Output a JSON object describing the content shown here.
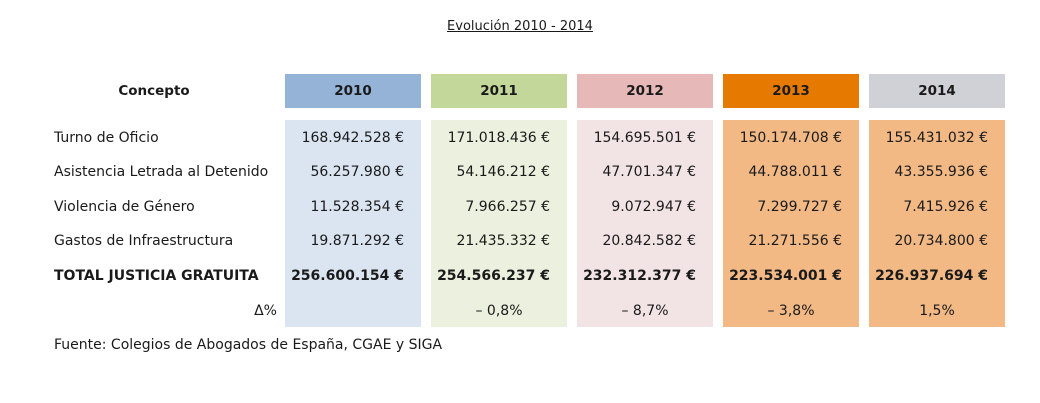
{
  "title": "Evolución 2010 - 2014",
  "concept_header": "Concepto",
  "years": [
    {
      "label": "2010",
      "header_color": "#95b3d7",
      "body_color": "#dbe5f1"
    },
    {
      "label": "2011",
      "header_color": "#c4d79b",
      "body_color": "#ebf1de"
    },
    {
      "label": "2012",
      "header_color": "#e6b8b7",
      "body_color": "#f2e4e4"
    },
    {
      "label": "2013",
      "header_color": "#e67a00",
      "body_color": "#f2b985"
    },
    {
      "label": "2014",
      "header_color": "#d0d1d6",
      "body_color": "#f2b985"
    }
  ],
  "rows": [
    {
      "label": "Turno de Oficio",
      "values": [
        "168.942.528 €",
        "171.018.436 €",
        "154.695.501 €",
        "150.174.708 €",
        "155.431.032 €"
      ]
    },
    {
      "label": "Asistencia Letrada al Detenido",
      "values": [
        "56.257.980 €",
        "54.146.212 €",
        "47.701.347 €",
        "44.788.011 €",
        "43.355.936 €"
      ]
    },
    {
      "label": "Violencia de Género",
      "values": [
        "11.528.354 €",
        "7.966.257 €",
        "9.072.947 €",
        "7.299.727 €",
        "7.415.926 €"
      ]
    },
    {
      "label": "Gastos de Infraestructura",
      "values": [
        "19.871.292 €",
        "21.435.332 €",
        "20.842.582 €",
        "21.271.556 €",
        "20.734.800 €"
      ]
    }
  ],
  "total": {
    "label": "TOTAL JUSTICIA GRATUITA",
    "values": [
      "256.600.154 €",
      "254.566.237 €",
      "232.312.377 €",
      "223.534.001 €",
      "226.937.694 €"
    ]
  },
  "delta": {
    "label": "Δ%",
    "values": [
      "",
      "– 0,8%",
      "– 8,7%",
      "– 3,8%",
      "1,5%"
    ]
  },
  "source": "Fuente: Colegios de Abogados de España, CGAE y SIGA"
}
